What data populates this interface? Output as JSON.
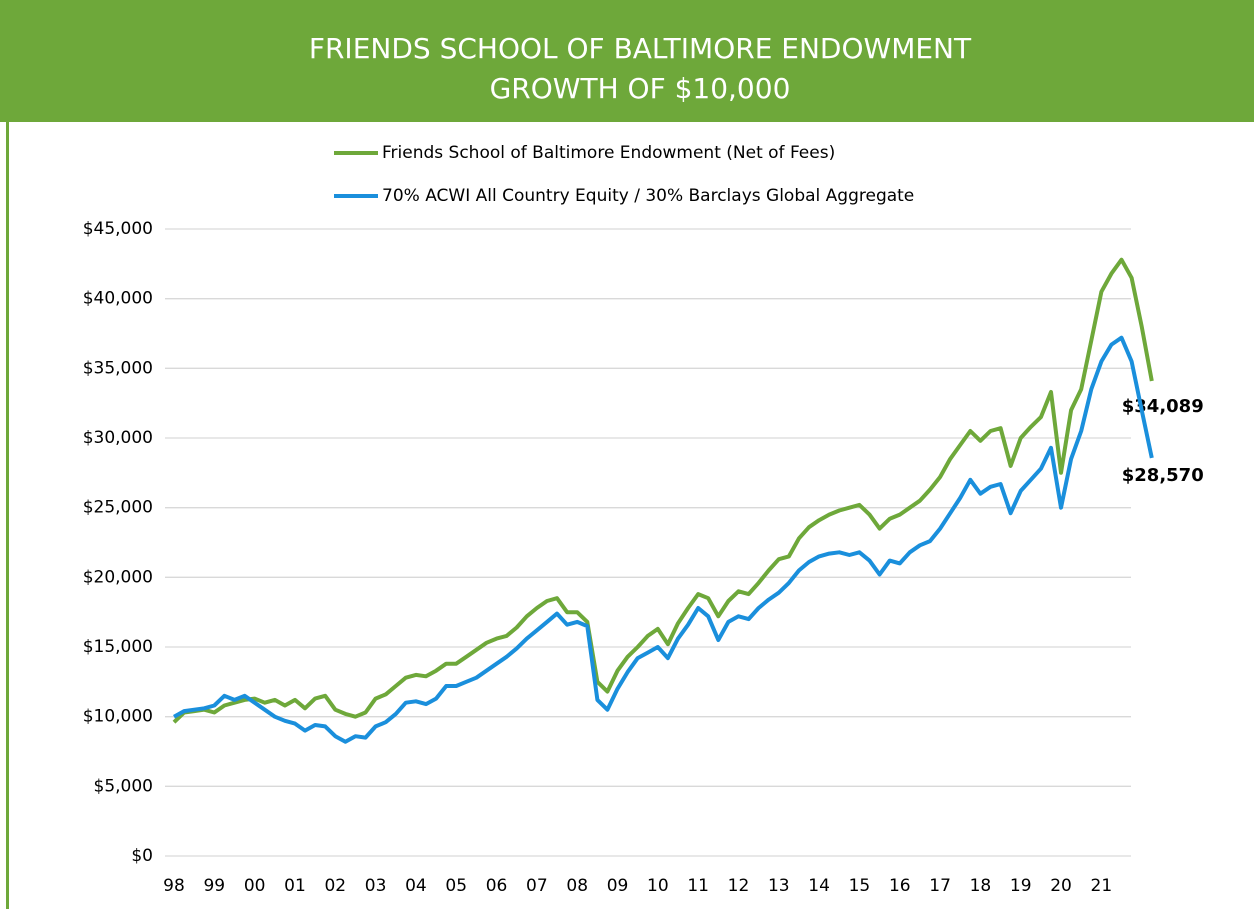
{
  "chart_data": {
    "type": "line",
    "title": "FRIENDS SCHOOL OF BALTIMORE ENDOWMENT",
    "subtitle": "GROWTH OF $10,000",
    "categories": [
      "98",
      null,
      null,
      null,
      "99",
      null,
      null,
      null,
      "00",
      null,
      null,
      null,
      "01",
      null,
      null,
      null,
      "02",
      null,
      null,
      null,
      "03",
      null,
      null,
      null,
      "04",
      null,
      null,
      null,
      "05",
      null,
      null,
      null,
      "06",
      null,
      null,
      null,
      "07",
      null,
      null,
      null,
      "08",
      null,
      null,
      null,
      "09",
      null,
      null,
      null,
      "10",
      null,
      null,
      null,
      "11",
      null,
      null,
      null,
      "12",
      null,
      null,
      null,
      "13",
      null,
      null,
      null,
      "14",
      null,
      null,
      null,
      "15",
      null,
      null,
      null,
      "16",
      null,
      null,
      null,
      "17",
      null,
      null,
      null,
      "18",
      null,
      null,
      null,
      "19",
      null,
      null,
      null,
      "20",
      null,
      null,
      null,
      "21",
      null,
      null,
      null,
      null,
      null
    ],
    "series": [
      {
        "name": "Friends School of Baltimore Endowment (Net of Fees)",
        "color": "#6ea83a",
        "end_label": "$34,089",
        "values": [
          9600,
          10300,
          10400,
          10500,
          10300,
          10800,
          11000,
          11200,
          11300,
          11000,
          11200,
          10800,
          11200,
          10600,
          11300,
          11500,
          10500,
          10200,
          10000,
          10300,
          11300,
          11600,
          12200,
          12800,
          13000,
          12900,
          13300,
          13800,
          13800,
          14300,
          14800,
          15300,
          15600,
          15800,
          16400,
          17200,
          17800,
          18300,
          18500,
          17500,
          17500,
          16800,
          12500,
          11800,
          13300,
          14300,
          15000,
          15800,
          16300,
          15200,
          16700,
          17800,
          18800,
          18500,
          17200,
          18300,
          19000,
          18800,
          19600,
          20500,
          21300,
          21500,
          22800,
          23600,
          24100,
          24500,
          24800,
          25000,
          25200,
          24500,
          23500,
          24200,
          24500,
          25000,
          25500,
          26300,
          27200,
          28500,
          29500,
          30500,
          29800,
          30500,
          30700,
          28000,
          30000,
          30800,
          31500,
          33300,
          27500,
          32000,
          33500,
          37000,
          40500,
          41800,
          42800,
          41500,
          38000,
          34089
        ]
      },
      {
        "name": "70% ACWI All Country Equity / 30% Barclays Global Aggregate",
        "color": "#1a8fdc",
        "end_label": "$28,570",
        "values": [
          10000,
          10400,
          10500,
          10600,
          10800,
          11500,
          11200,
          11500,
          11000,
          10500,
          10000,
          9700,
          9500,
          9000,
          9400,
          9300,
          8600,
          8200,
          8600,
          8500,
          9300,
          9600,
          10200,
          11000,
          11100,
          10900,
          11300,
          12200,
          12200,
          12500,
          12800,
          13300,
          13800,
          14300,
          14900,
          15600,
          16200,
          16800,
          17400,
          16600,
          16800,
          16500,
          11200,
          10500,
          12000,
          13200,
          14200,
          14600,
          15000,
          14200,
          15600,
          16600,
          17800,
          17200,
          15500,
          16800,
          17200,
          17000,
          17800,
          18400,
          18900,
          19600,
          20500,
          21100,
          21500,
          21700,
          21800,
          21600,
          21800,
          21200,
          20200,
          21200,
          21000,
          21800,
          22300,
          22600,
          23500,
          24600,
          25700,
          27000,
          26000,
          26500,
          26700,
          24600,
          26200,
          27000,
          27800,
          29300,
          25000,
          28500,
          30500,
          33500,
          35500,
          36700,
          37200,
          35500,
          32000,
          28570
        ]
      }
    ],
    "ylim": [
      0,
      45000
    ],
    "yticks": [
      {
        "value": 0,
        "label": "$0"
      },
      {
        "value": 5000,
        "label": "$5,000"
      },
      {
        "value": 10000,
        "label": "$10,000"
      },
      {
        "value": 15000,
        "label": "$15,000"
      },
      {
        "value": 20000,
        "label": "$20,000"
      },
      {
        "value": 25000,
        "label": "$25,000"
      },
      {
        "value": 30000,
        "label": "$30,000"
      },
      {
        "value": 35000,
        "label": "$35,000"
      },
      {
        "value": 40000,
        "label": "$40,000"
      },
      {
        "value": 45000,
        "label": "$45,000"
      }
    ],
    "grid": true
  }
}
